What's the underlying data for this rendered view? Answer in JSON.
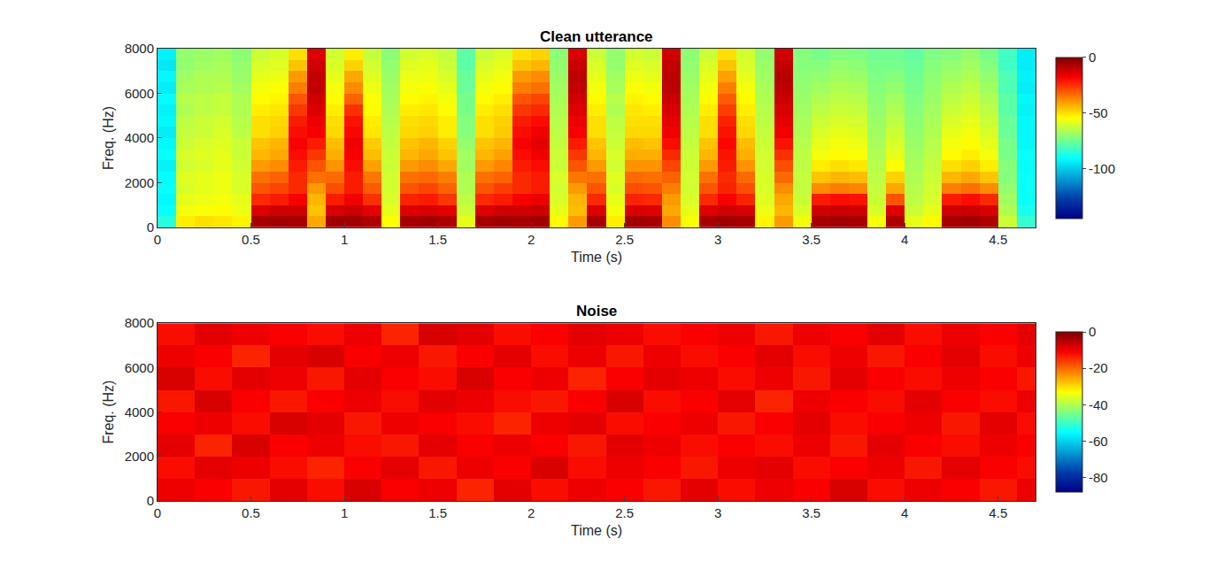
{
  "chart_data": [
    {
      "type": "heatmap",
      "title": "Clean utterance",
      "x_label": "Time (s)",
      "y_label": "Freq. (Hz)",
      "color": "Jet",
      "x": [
        0.05,
        0.15,
        0.25,
        0.35,
        0.45,
        0.55,
        0.65,
        0.75,
        0.85,
        0.95,
        1.05,
        1.15,
        1.25,
        1.35,
        1.45,
        1.55,
        1.65,
        1.75,
        1.85,
        1.95,
        2.05,
        2.15,
        2.25,
        2.35,
        2.45,
        2.55,
        2.65,
        2.75,
        2.85,
        2.95,
        3.05,
        3.15,
        3.25,
        3.35,
        3.45,
        3.55,
        3.65,
        3.75,
        3.85,
        3.95,
        4.05,
        4.15,
        4.25,
        4.35,
        4.45,
        4.55,
        4.65
      ],
      "y": [
        250,
        750,
        1250,
        1750,
        2250,
        2750,
        3250,
        3750,
        4250,
        4750,
        5250,
        5750,
        6250,
        6750,
        7250,
        7750
      ],
      "z": [
        [
          -86,
          -90,
          -92,
          -90,
          -91,
          -93,
          -90,
          -92,
          -94,
          -92,
          -93,
          -91,
          -94,
          -92,
          -95,
          -93
        ],
        [
          -52,
          -56,
          -58,
          -60,
          -59,
          -61,
          -60,
          -62,
          -63,
          -64,
          -66,
          -65,
          -67,
          -68,
          -70,
          -70
        ],
        [
          -50,
          -55,
          -57,
          -58,
          -58,
          -60,
          -59,
          -60,
          -62,
          -62,
          -64,
          -64,
          -66,
          -66,
          -68,
          -69
        ],
        [
          -51,
          -54,
          -56,
          -57,
          -57,
          -58,
          -58,
          -59,
          -60,
          -61,
          -63,
          -63,
          -65,
          -66,
          -67,
          -68
        ],
        [
          -53,
          -57,
          -58,
          -60,
          -60,
          -61,
          -62,
          -62,
          -64,
          -65,
          -66,
          -66,
          -68,
          -69,
          -70,
          -71
        ],
        [
          -6,
          -14,
          -24,
          -30,
          -34,
          -40,
          -44,
          -46,
          -50,
          -50,
          -52,
          -54,
          -56,
          -58,
          -60,
          -62
        ],
        [
          -5,
          -12,
          -22,
          -28,
          -32,
          -38,
          -42,
          -44,
          -48,
          -49,
          -51,
          -53,
          -55,
          -57,
          -59,
          -60
        ],
        [
          -6,
          -12,
          -18,
          -24,
          -24,
          -22,
          -20,
          -18,
          -20,
          -22,
          -26,
          -30,
          -36,
          -40,
          -46,
          -50
        ],
        [
          -42,
          -46,
          -44,
          -40,
          -34,
          -30,
          -26,
          -22,
          -18,
          -16,
          -14,
          -12,
          -10,
          -10,
          -12,
          -14
        ],
        [
          -5,
          -13,
          -22,
          -29,
          -33,
          -39,
          -43,
          -45,
          -49,
          -50,
          -52,
          -54,
          -56,
          -58,
          -60,
          -61
        ],
        [
          -5,
          -11,
          -17,
          -22,
          -22,
          -20,
          -18,
          -17,
          -19,
          -21,
          -25,
          -32,
          -38,
          -42,
          -48,
          -52
        ],
        [
          -7,
          -15,
          -25,
          -31,
          -35,
          -41,
          -45,
          -47,
          -51,
          -52,
          -54,
          -55,
          -57,
          -59,
          -61,
          -63
        ],
        [
          -55,
          -58,
          -60,
          -61,
          -61,
          -62,
          -62,
          -63,
          -64,
          -65,
          -66,
          -67,
          -68,
          -69,
          -70,
          -71
        ],
        [
          -6,
          -14,
          -23,
          -30,
          -34,
          -40,
          -44,
          -46,
          -49,
          -50,
          -52,
          -54,
          -56,
          -57,
          -59,
          -61
        ],
        [
          -5,
          -13,
          -22,
          -28,
          -33,
          -38,
          -42,
          -44,
          -48,
          -49,
          -51,
          -53,
          -55,
          -57,
          -58,
          -60
        ],
        [
          -7,
          -15,
          -26,
          -32,
          -36,
          -42,
          -46,
          -48,
          -52,
          -52,
          -54,
          -56,
          -58,
          -60,
          -62,
          -63
        ],
        [
          -58,
          -62,
          -64,
          -66,
          -66,
          -68,
          -68,
          -70,
          -72,
          -72,
          -74,
          -74,
          -76,
          -76,
          -78,
          -78
        ],
        [
          -6,
          -14,
          -24,
          -30,
          -34,
          -40,
          -44,
          -46,
          -50,
          -50,
          -52,
          -54,
          -56,
          -58,
          -60,
          -62
        ],
        [
          -5,
          -12,
          -22,
          -27,
          -32,
          -37,
          -41,
          -44,
          -47,
          -48,
          -50,
          -52,
          -54,
          -56,
          -58,
          -60
        ],
        [
          -6,
          -12,
          -18,
          -24,
          -24,
          -22,
          -20,
          -18,
          -20,
          -22,
          -26,
          -30,
          -36,
          -40,
          -46,
          -50
        ],
        [
          -5,
          -11,
          -16,
          -22,
          -22,
          -20,
          -17,
          -15,
          -17,
          -20,
          -24,
          -28,
          -34,
          -38,
          -44,
          -48
        ],
        [
          -54,
          -58,
          -60,
          -61,
          -60,
          -62,
          -62,
          -63,
          -64,
          -65,
          -66,
          -67,
          -68,
          -69,
          -70,
          -71
        ],
        [
          -40,
          -45,
          -44,
          -40,
          -35,
          -30,
          -26,
          -22,
          -18,
          -16,
          -14,
          -12,
          -10,
          -9,
          -11,
          -13
        ],
        [
          -6,
          -14,
          -24,
          -30,
          -34,
          -40,
          -44,
          -46,
          -50,
          -50,
          -52,
          -54,
          -56,
          -58,
          -60,
          -62
        ],
        [
          -52,
          -56,
          -58,
          -60,
          -59,
          -61,
          -60,
          -62,
          -63,
          -64,
          -66,
          -65,
          -67,
          -68,
          -70,
          -70
        ],
        [
          -5,
          -13,
          -23,
          -29,
          -33,
          -39,
          -43,
          -45,
          -49,
          -50,
          -51,
          -53,
          -55,
          -57,
          -59,
          -61
        ],
        [
          -6,
          -14,
          -24,
          -30,
          -34,
          -39,
          -43,
          -46,
          -49,
          -50,
          -52,
          -54,
          -56,
          -58,
          -60,
          -62
        ],
        [
          -38,
          -42,
          -40,
          -36,
          -32,
          -28,
          -24,
          -20,
          -17,
          -15,
          -13,
          -11,
          -9,
          -9,
          -10,
          -12
        ],
        [
          -55,
          -58,
          -60,
          -61,
          -61,
          -62,
          -62,
          -63,
          -64,
          -65,
          -66,
          -67,
          -68,
          -69,
          -70,
          -71
        ],
        [
          -6,
          -14,
          -24,
          -30,
          -34,
          -40,
          -44,
          -46,
          -50,
          -50,
          -52,
          -54,
          -56,
          -58,
          -60,
          -62
        ],
        [
          -5,
          -12,
          -18,
          -23,
          -24,
          -22,
          -21,
          -19,
          -21,
          -23,
          -27,
          -31,
          -36,
          -41,
          -46,
          -50
        ],
        [
          -6,
          -13,
          -23,
          -29,
          -33,
          -39,
          -43,
          -45,
          -49,
          -50,
          -52,
          -54,
          -56,
          -58,
          -60,
          -61
        ],
        [
          -53,
          -57,
          -59,
          -60,
          -60,
          -61,
          -61,
          -62,
          -63,
          -64,
          -65,
          -66,
          -67,
          -68,
          -69,
          -70
        ],
        [
          -40,
          -44,
          -42,
          -38,
          -33,
          -29,
          -25,
          -21,
          -17,
          -15,
          -13,
          -11,
          -9,
          -8,
          -10,
          -12
        ],
        [
          -56,
          -60,
          -62,
          -63,
          -63,
          -64,
          -64,
          -65,
          -66,
          -67,
          -68,
          -69,
          -70,
          -71,
          -72,
          -72
        ],
        [
          -6,
          -12,
          -22,
          -38,
          -46,
          -52,
          -56,
          -58,
          -60,
          -62,
          -64,
          -66,
          -68,
          -70,
          -72,
          -74
        ],
        [
          -5,
          -11,
          -20,
          -36,
          -44,
          -50,
          -54,
          -56,
          -58,
          -60,
          -62,
          -64,
          -66,
          -68,
          -70,
          -72
        ],
        [
          -6,
          -12,
          -21,
          -37,
          -45,
          -51,
          -55,
          -57,
          -59,
          -61,
          -63,
          -65,
          -67,
          -69,
          -71,
          -73
        ],
        [
          -56,
          -60,
          -62,
          -63,
          -64,
          -65,
          -66,
          -67,
          -68,
          -69,
          -70,
          -71,
          -72,
          -73,
          -74,
          -75
        ],
        [
          -7,
          -14,
          -30,
          -42,
          -48,
          -54,
          -58,
          -60,
          -62,
          -64,
          -66,
          -68,
          -70,
          -72,
          -74,
          -75
        ],
        [
          -58,
          -62,
          -64,
          -65,
          -66,
          -67,
          -68,
          -69,
          -70,
          -71,
          -72,
          -73,
          -74,
          -75,
          -76,
          -77
        ],
        [
          -54,
          -58,
          -60,
          -61,
          -62,
          -63,
          -64,
          -65,
          -66,
          -67,
          -68,
          -69,
          -70,
          -71,
          -72,
          -73
        ],
        [
          -6,
          -12,
          -22,
          -36,
          -44,
          -50,
          -54,
          -56,
          -58,
          -60,
          -62,
          -64,
          -66,
          -68,
          -70,
          -72
        ],
        [
          -5,
          -11,
          -20,
          -34,
          -42,
          -48,
          -52,
          -54,
          -56,
          -58,
          -60,
          -62,
          -64,
          -66,
          -68,
          -70
        ],
        [
          -7,
          -13,
          -24,
          -38,
          -46,
          -52,
          -56,
          -58,
          -60,
          -62,
          -64,
          -66,
          -68,
          -70,
          -72,
          -74
        ],
        [
          -62,
          -66,
          -68,
          -70,
          -72,
          -72,
          -74,
          -74,
          -76,
          -76,
          -78,
          -78,
          -80,
          -80,
          -82,
          -82
        ],
        [
          -84,
          -88,
          -90,
          -90,
          -90,
          -91,
          -90,
          -92,
          -92,
          -92,
          -93,
          -92,
          -94,
          -93,
          -94,
          -94
        ]
      ],
      "xlim": [
        0,
        4.7
      ],
      "xticks": [
        0,
        0.5,
        1,
        1.5,
        2,
        2.5,
        3,
        3.5,
        4,
        4.5
      ],
      "ylim": [
        0,
        8000
      ],
      "yticks": [
        0,
        2000,
        4000,
        6000,
        8000
      ],
      "zlim": [
        -145,
        0
      ],
      "zticks": [
        -100,
        -50,
        0
      ]
    },
    {
      "type": "heatmap",
      "title": "Noise",
      "x_label": "Time (s)",
      "y_label": "Freq. (Hz)",
      "color": "Jet",
      "x": [
        0.1,
        0.3,
        0.5,
        0.7,
        0.9,
        1.1,
        1.3,
        1.5,
        1.7,
        1.9,
        2.1,
        2.3,
        2.5,
        2.7,
        2.9,
        3.1,
        3.3,
        3.5,
        3.7,
        3.9,
        4.1,
        4.3,
        4.5,
        4.7
      ],
      "y": [
        500,
        1500,
        2500,
        3500,
        4500,
        5500,
        6500,
        7500
      ],
      "z": [
        [
          -10,
          -12,
          -9,
          -11,
          -13,
          -8,
          -10,
          -12
        ],
        [
          -11,
          -9,
          -14,
          -10,
          -8,
          -12,
          -11,
          -9
        ],
        [
          -13,
          -10,
          -8,
          -12,
          -11,
          -9,
          -14,
          -10
        ],
        [
          -9,
          -12,
          -11,
          -8,
          -13,
          -10,
          -9,
          -11
        ],
        [
          -12,
          -14,
          -10,
          -9,
          -11,
          -13,
          -8,
          -12
        ],
        [
          -8,
          -11,
          -12,
          -13,
          -10,
          -9,
          -11,
          -10
        ],
        [
          -11,
          -9,
          -13,
          -10,
          -12,
          -11,
          -10,
          -14
        ],
        [
          -10,
          -13,
          -9,
          -11,
          -9,
          -12,
          -13,
          -8
        ],
        [
          -14,
          -10,
          -11,
          -12,
          -10,
          -8,
          -11,
          -9
        ],
        [
          -9,
          -11,
          -10,
          -14,
          -12,
          -11,
          -9,
          -12
        ],
        [
          -12,
          -8,
          -11,
          -10,
          -13,
          -10,
          -12,
          -11
        ],
        [
          -10,
          -12,
          -13,
          -9,
          -11,
          -14,
          -10,
          -9
        ],
        [
          -11,
          -10,
          -9,
          -12,
          -8,
          -11,
          -13,
          -10
        ],
        [
          -13,
          -11,
          -10,
          -11,
          -12,
          -9,
          -10,
          -12
        ],
        [
          -9,
          -13,
          -12,
          -10,
          -11,
          -10,
          -12,
          -11
        ],
        [
          -12,
          -10,
          -11,
          -13,
          -9,
          -12,
          -11,
          -10
        ],
        [
          -10,
          -9,
          -12,
          -11,
          -14,
          -10,
          -9,
          -13
        ],
        [
          -11,
          -12,
          -10,
          -9,
          -10,
          -13,
          -12,
          -10
        ],
        [
          -8,
          -11,
          -13,
          -12,
          -11,
          -9,
          -10,
          -11
        ],
        [
          -12,
          -10,
          -9,
          -11,
          -12,
          -11,
          -13,
          -9
        ],
        [
          -10,
          -13,
          -11,
          -10,
          -9,
          -12,
          -11,
          -12
        ],
        [
          -11,
          -9,
          -12,
          -13,
          -11,
          -10,
          -9,
          -10
        ],
        [
          -13,
          -11,
          -10,
          -9,
          -12,
          -11,
          -12,
          -11
        ],
        [
          -10,
          -12,
          -11,
          -12,
          -10,
          -13,
          -10,
          -9
        ]
      ],
      "xlim": [
        0,
        4.7
      ],
      "xticks": [
        0,
        0.5,
        1,
        1.5,
        2,
        2.5,
        3,
        3.5,
        4,
        4.5
      ],
      "ylim": [
        0,
        8000
      ],
      "yticks": [
        0,
        2000,
        4000,
        6000,
        8000
      ],
      "zlim": [
        -88,
        0
      ],
      "zticks": [
        -80,
        -60,
        -40,
        -20,
        0
      ]
    }
  ]
}
